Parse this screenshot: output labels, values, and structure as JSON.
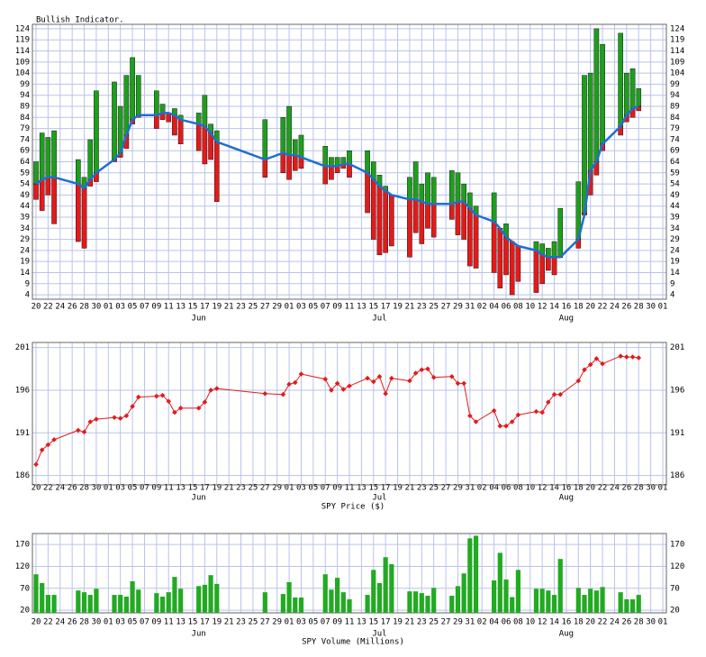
{
  "chart_data": [
    {
      "type": "indicator",
      "title": "Bullish Indicator.",
      "categories": [
        "20",
        null,
        "22",
        null,
        "24",
        null,
        "26",
        null,
        "28",
        null,
        "30",
        null,
        "01",
        null,
        "03",
        null,
        "05",
        null,
        "07",
        null,
        "09",
        null,
        "11",
        null,
        "13",
        null,
        "15",
        null,
        "17",
        null,
        "19",
        null,
        "21",
        null,
        "23",
        null,
        "25",
        null,
        "27",
        null,
        "29",
        null,
        "01",
        null,
        "03",
        null,
        "05",
        null,
        "07",
        null,
        "09",
        null,
        "11",
        null,
        "13",
        null,
        "15",
        null,
        "17",
        null,
        "19",
        null,
        "21",
        null,
        "23",
        null,
        "25",
        null,
        "27",
        null,
        "29",
        null,
        "31",
        null,
        "02",
        null,
        "04",
        null,
        "06",
        null,
        "08",
        null,
        "10",
        null,
        "12",
        null,
        "14",
        null,
        "16",
        null,
        "18",
        null,
        "20",
        null,
        "22",
        null,
        "24",
        null,
        "26",
        null,
        "28",
        null,
        "30",
        null,
        "01"
      ],
      "months": [
        null,
        null,
        null,
        null,
        null,
        null,
        null,
        null,
        null,
        null,
        null,
        null,
        null,
        null,
        null,
        null,
        null,
        null,
        null,
        null,
        null,
        null,
        null,
        null,
        null,
        null,
        null,
        "Jun",
        null,
        null,
        null,
        null,
        null,
        null,
        null,
        null,
        null,
        null,
        null,
        null,
        null,
        null,
        null,
        null,
        null,
        null,
        null,
        null,
        null,
        null,
        null,
        null,
        null,
        null,
        null,
        null,
        null,
        "Jul",
        null,
        null,
        null,
        null,
        null,
        null,
        null,
        null,
        null,
        null,
        null,
        null,
        null,
        null,
        null,
        null,
        null,
        null,
        null,
        null,
        null,
        null,
        null,
        null,
        null,
        null,
        null,
        null,
        null,
        null,
        "Aug",
        null,
        null,
        null,
        null,
        null,
        null,
        null,
        null,
        null,
        null,
        null,
        null,
        null,
        null,
        null,
        null
      ],
      "series": [
        {
          "color": "#1e9e1e",
          "values": [
            64,
            77,
            75,
            78,
            null,
            null,
            null,
            65,
            57,
            74,
            96,
            null,
            null,
            100,
            89,
            103,
            111,
            103,
            null,
            null,
            96,
            90,
            86,
            88,
            85,
            null,
            null,
            86,
            94,
            81,
            78,
            null,
            null,
            null,
            null,
            null,
            null,
            null,
            83,
            null,
            null,
            84,
            89,
            74,
            76,
            null,
            null,
            null,
            71,
            66,
            66,
            66,
            69,
            null,
            null,
            69,
            64,
            58,
            53,
            48,
            null,
            null,
            57,
            64,
            54,
            59,
            57,
            null,
            null,
            60,
            59,
            54,
            50,
            44,
            null,
            null,
            50,
            33,
            36,
            28,
            26,
            null,
            null,
            28,
            27,
            25,
            28,
            43,
            null,
            null,
            55,
            103,
            104,
            124,
            117,
            null,
            null,
            122,
            104,
            106,
            97,
            null,
            null,
            null,
            null
          ]
        },
        {
          "color": "#e31a1a",
          "values": [
            47,
            42,
            49,
            36,
            null,
            null,
            null,
            28,
            25,
            53,
            55,
            null,
            null,
            64,
            66,
            70,
            81,
            84,
            null,
            null,
            79,
            83,
            82,
            76,
            72,
            null,
            null,
            69,
            63,
            65,
            46,
            null,
            null,
            null,
            null,
            null,
            null,
            null,
            57,
            null,
            null,
            59,
            56,
            60,
            61,
            null,
            null,
            null,
            54,
            56,
            59,
            61,
            57,
            null,
            null,
            41,
            29,
            22,
            23,
            26,
            null,
            null,
            21,
            32,
            27,
            34,
            30,
            null,
            null,
            38,
            31,
            29,
            17,
            16,
            null,
            null,
            14,
            7,
            13,
            4,
            10,
            null,
            null,
            5,
            9,
            15,
            13,
            21,
            null,
            null,
            25,
            41,
            49,
            58,
            69,
            null,
            null,
            76,
            82,
            84,
            87,
            null,
            null,
            null,
            null
          ]
        },
        {
          "color": "#1f6fd1",
          "values": [
            54,
            56,
            57,
            57,
            null,
            null,
            null,
            54,
            52,
            56,
            59,
            null,
            null,
            65,
            68,
            76,
            83,
            85,
            null,
            null,
            85,
            86,
            86,
            85,
            83,
            null,
            null,
            81,
            80,
            77,
            73,
            null,
            null,
            null,
            null,
            null,
            null,
            null,
            65,
            null,
            null,
            68,
            67,
            67,
            66,
            null,
            null,
            null,
            62,
            62,
            62,
            63,
            63,
            null,
            null,
            59,
            56,
            53,
            51,
            49,
            null,
            null,
            47,
            47,
            46,
            45,
            45,
            null,
            null,
            45,
            46,
            46,
            43,
            40,
            null,
            null,
            37,
            34,
            30,
            28,
            26,
            null,
            null,
            24,
            22,
            21,
            21,
            21,
            null,
            null,
            29,
            40,
            60,
            64,
            72,
            null,
            null,
            80,
            85,
            88,
            89,
            null,
            null,
            null,
            null
          ]
        }
      ],
      "ylim": [
        2,
        126
      ],
      "yticks": [
        4,
        9,
        14,
        19,
        24,
        29,
        34,
        39,
        44,
        49,
        54,
        59,
        64,
        69,
        74,
        79,
        84,
        89,
        94,
        99,
        104,
        109,
        114,
        119,
        124
      ],
      "grid": true,
      "span_gaps": true
    },
    {
      "type": "line",
      "title": "SPY Price ($)",
      "categories": [
        "20",
        null,
        "22",
        null,
        "24",
        null,
        "26",
        null,
        "28",
        null,
        "30",
        null,
        "01",
        null,
        "03",
        null,
        "05",
        null,
        "07",
        null,
        "09",
        null,
        "11",
        null,
        "13",
        null,
        "15",
        null,
        "17",
        null,
        "19",
        null,
        "21",
        null,
        "23",
        null,
        "25",
        null,
        "27",
        null,
        "29",
        null,
        "01",
        null,
        "03",
        null,
        "05",
        null,
        "07",
        null,
        "09",
        null,
        "11",
        null,
        "13",
        null,
        "15",
        null,
        "17",
        null,
        "19",
        null,
        "21",
        null,
        "23",
        null,
        "25",
        null,
        "27",
        null,
        "29",
        null,
        "31",
        null,
        "02",
        null,
        "04",
        null,
        "06",
        null,
        "08",
        null,
        "10",
        null,
        "12",
        null,
        "14",
        null,
        "16",
        null,
        "18",
        null,
        "20",
        null,
        "22",
        null,
        "24",
        null,
        "26",
        null,
        "28",
        null,
        "30",
        null,
        "01"
      ],
      "months": [
        null,
        null,
        null,
        null,
        null,
        null,
        null,
        null,
        null,
        null,
        null,
        null,
        null,
        null,
        null,
        null,
        null,
        null,
        null,
        null,
        null,
        null,
        null,
        null,
        null,
        null,
        null,
        "Jun",
        null,
        null,
        null,
        null,
        null,
        null,
        null,
        null,
        null,
        null,
        null,
        null,
        null,
        null,
        null,
        null,
        null,
        null,
        null,
        null,
        null,
        null,
        null,
        null,
        null,
        null,
        null,
        null,
        null,
        "Jul",
        null,
        null,
        null,
        null,
        null,
        null,
        null,
        null,
        null,
        null,
        null,
        null,
        null,
        null,
        null,
        null,
        null,
        null,
        null,
        null,
        null,
        null,
        null,
        null,
        null,
        null,
        null,
        null,
        null,
        null,
        "Aug",
        null,
        null,
        null,
        null,
        null,
        null,
        null,
        null,
        null,
        null,
        null,
        null,
        null,
        null,
        null,
        null
      ],
      "series": [
        {
          "color": "#e31a1a",
          "values": [
            187.3,
            189,
            189.6,
            190.2,
            null,
            null,
            null,
            191.3,
            191.1,
            192.3,
            192.6,
            null,
            null,
            192.8,
            192.7,
            193,
            194.1,
            195.2,
            null,
            null,
            195.3,
            195.4,
            194.7,
            193.4,
            193.9,
            null,
            null,
            193.9,
            194.6,
            196,
            196.2,
            null,
            null,
            null,
            null,
            null,
            null,
            null,
            195.6,
            null,
            null,
            195.5,
            196.7,
            196.9,
            197.9,
            null,
            null,
            null,
            197.3,
            196,
            196.8,
            196.1,
            196.5,
            null,
            null,
            197.4,
            197,
            197.6,
            195.6,
            197.4,
            null,
            null,
            197.1,
            198,
            198.4,
            198.5,
            197.5,
            null,
            null,
            197.6,
            196.8,
            196.8,
            193,
            192.3,
            null,
            null,
            193.6,
            191.8,
            191.8,
            192.3,
            193.1,
            null,
            null,
            193.5,
            193.4,
            194.6,
            195.5,
            195.5,
            null,
            null,
            197.1,
            198.4,
            199,
            199.7,
            199.1,
            null,
            null,
            200,
            199.9,
            199.9,
            199.8,
            null,
            null,
            null,
            null
          ]
        }
      ],
      "ylim": [
        184.9,
        201.6
      ],
      "yticks": [
        186,
        191,
        196,
        201
      ],
      "grid": true,
      "span_gaps": true
    },
    {
      "type": "bar",
      "title": "SPY Volume (Millions)",
      "categories": [
        "20",
        null,
        "22",
        null,
        "24",
        null,
        "26",
        null,
        "28",
        null,
        "30",
        null,
        "01",
        null,
        "03",
        null,
        "05",
        null,
        "07",
        null,
        "09",
        null,
        "11",
        null,
        "13",
        null,
        "15",
        null,
        "17",
        null,
        "19",
        null,
        "21",
        null,
        "23",
        null,
        "25",
        null,
        "27",
        null,
        "29",
        null,
        "01",
        null,
        "03",
        null,
        "05",
        null,
        "07",
        null,
        "09",
        null,
        "11",
        null,
        "13",
        null,
        "15",
        null,
        "17",
        null,
        "19",
        null,
        "21",
        null,
        "23",
        null,
        "25",
        null,
        "27",
        null,
        "29",
        null,
        "31",
        null,
        "02",
        null,
        "04",
        null,
        "06",
        null,
        "08",
        null,
        "10",
        null,
        "12",
        null,
        "14",
        null,
        "16",
        null,
        "18",
        null,
        "20",
        null,
        "22",
        null,
        "24",
        null,
        "26",
        null,
        "28",
        null,
        "30",
        null,
        "01"
      ],
      "months": [
        null,
        null,
        null,
        null,
        null,
        null,
        null,
        null,
        null,
        null,
        null,
        null,
        null,
        null,
        null,
        null,
        null,
        null,
        null,
        null,
        null,
        null,
        null,
        null,
        null,
        null,
        null,
        "Jun",
        null,
        null,
        null,
        null,
        null,
        null,
        null,
        null,
        null,
        null,
        null,
        null,
        null,
        null,
        null,
        null,
        null,
        null,
        null,
        null,
        null,
        null,
        null,
        null,
        null,
        null,
        null,
        null,
        null,
        "Jul",
        null,
        null,
        null,
        null,
        null,
        null,
        null,
        null,
        null,
        null,
        null,
        null,
        null,
        null,
        null,
        null,
        null,
        null,
        null,
        null,
        null,
        null,
        null,
        null,
        null,
        null,
        null,
        null,
        null,
        null,
        "Aug",
        null,
        null,
        null,
        null,
        null,
        null,
        null,
        null,
        null,
        null,
        null,
        null,
        null,
        null,
        null,
        null
      ],
      "series": [
        {
          "color": "#22aa22",
          "values": [
            102,
            82,
            55,
            55,
            null,
            null,
            null,
            65,
            61,
            55,
            69,
            null,
            null,
            55,
            55,
            51,
            86,
            67,
            null,
            null,
            59,
            51,
            61,
            96,
            69,
            null,
            null,
            75,
            78,
            100,
            80,
            null,
            null,
            null,
            null,
            null,
            null,
            null,
            61,
            null,
            null,
            57,
            84,
            49,
            49,
            null,
            null,
            null,
            102,
            67,
            94,
            61,
            45,
            null,
            null,
            55,
            112,
            82,
            141,
            125,
            null,
            null,
            63,
            63,
            59,
            53,
            71,
            null,
            null,
            53,
            75,
            104,
            184,
            190,
            null,
            null,
            88,
            151,
            90,
            50,
            112,
            null,
            null,
            69,
            69,
            65,
            55,
            137,
            null,
            null,
            71,
            55,
            69,
            65,
            73,
            null,
            null,
            61,
            45,
            45,
            55,
            null,
            null,
            null,
            null
          ]
        }
      ],
      "ylim": [
        14,
        195
      ],
      "yticks": [
        20,
        70,
        120,
        170
      ],
      "grid": true
    }
  ]
}
